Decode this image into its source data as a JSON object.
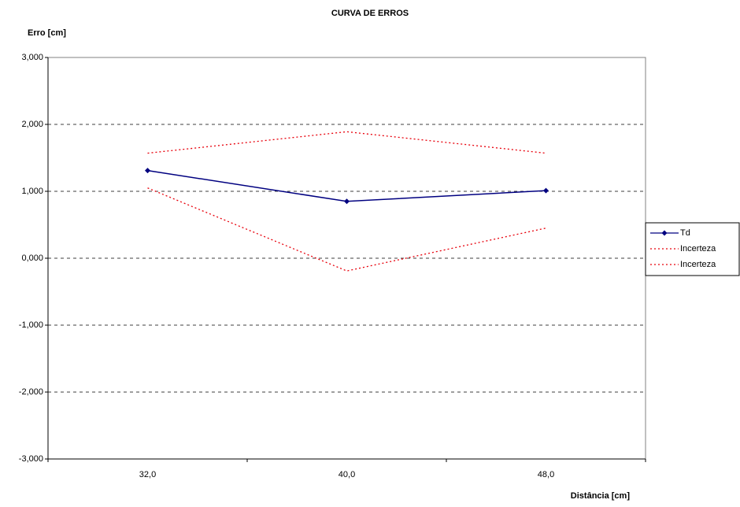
{
  "chart_data": {
    "type": "line",
    "title": "CURVA DE ERROS",
    "y_label": "Erro [cm]",
    "x_label": "Distância [cm]",
    "categories": [
      "32,0",
      "40,0",
      "48,0"
    ],
    "series": [
      {
        "name": "Td",
        "color": "#000080",
        "dash": "solid",
        "marker": "diamond",
        "values": [
          1.31,
          0.85,
          1.01
        ]
      },
      {
        "name": "Incerteza",
        "color": "#e8000b",
        "dash": "dotted",
        "marker": "none",
        "values": [
          1.57,
          1.89,
          1.57
        ]
      },
      {
        "name": "Incerteza",
        "color": "#e8000b",
        "dash": "dotted",
        "marker": "none",
        "values": [
          1.05,
          -0.19,
          0.45
        ]
      }
    ],
    "ylim": [
      -3,
      3
    ],
    "yticks": [
      {
        "value": -3,
        "label": "-3,000"
      },
      {
        "value": -2,
        "label": "-2,000"
      },
      {
        "value": -1,
        "label": "-1,000"
      },
      {
        "value": 0,
        "label": "0,000"
      },
      {
        "value": 1,
        "label": "1,000"
      },
      {
        "value": 2,
        "label": "2,000"
      },
      {
        "value": 3,
        "label": "3,000"
      }
    ],
    "grid": true,
    "legend": "right"
  }
}
